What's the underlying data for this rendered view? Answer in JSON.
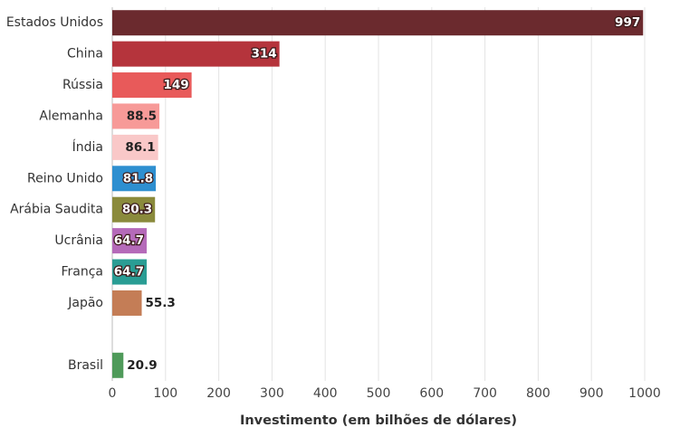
{
  "chart_data": {
    "type": "barh",
    "x_label": "Investimento (em bilhões de dólares)",
    "categories": [
      "Estados Unidos",
      "China",
      "Rússia",
      "Alemanha",
      "Índia",
      "Reino Unido",
      "Arábia Saudita",
      "Ucrânia",
      "França",
      "Japão",
      null,
      "Brasil"
    ],
    "values": [
      997,
      314,
      149,
      88.5,
      86.1,
      81.8,
      80.3,
      64.7,
      64.7,
      55.3,
      null,
      20.9
    ],
    "colors": [
      "#6b2a2e",
      "#b5343c",
      "#e85a5a",
      "#f79a98",
      "#f9c8c8",
      "#2e8fd0",
      "#8a8a3c",
      "#b56ab9",
      "#2a9d94",
      "#c47d56",
      null,
      "#4f9a5a"
    ],
    "xlim": [
      0,
      1000
    ],
    "xticks": [
      0,
      100,
      200,
      300,
      400,
      500,
      600,
      700,
      800,
      900,
      1000
    ],
    "grid": true
  }
}
